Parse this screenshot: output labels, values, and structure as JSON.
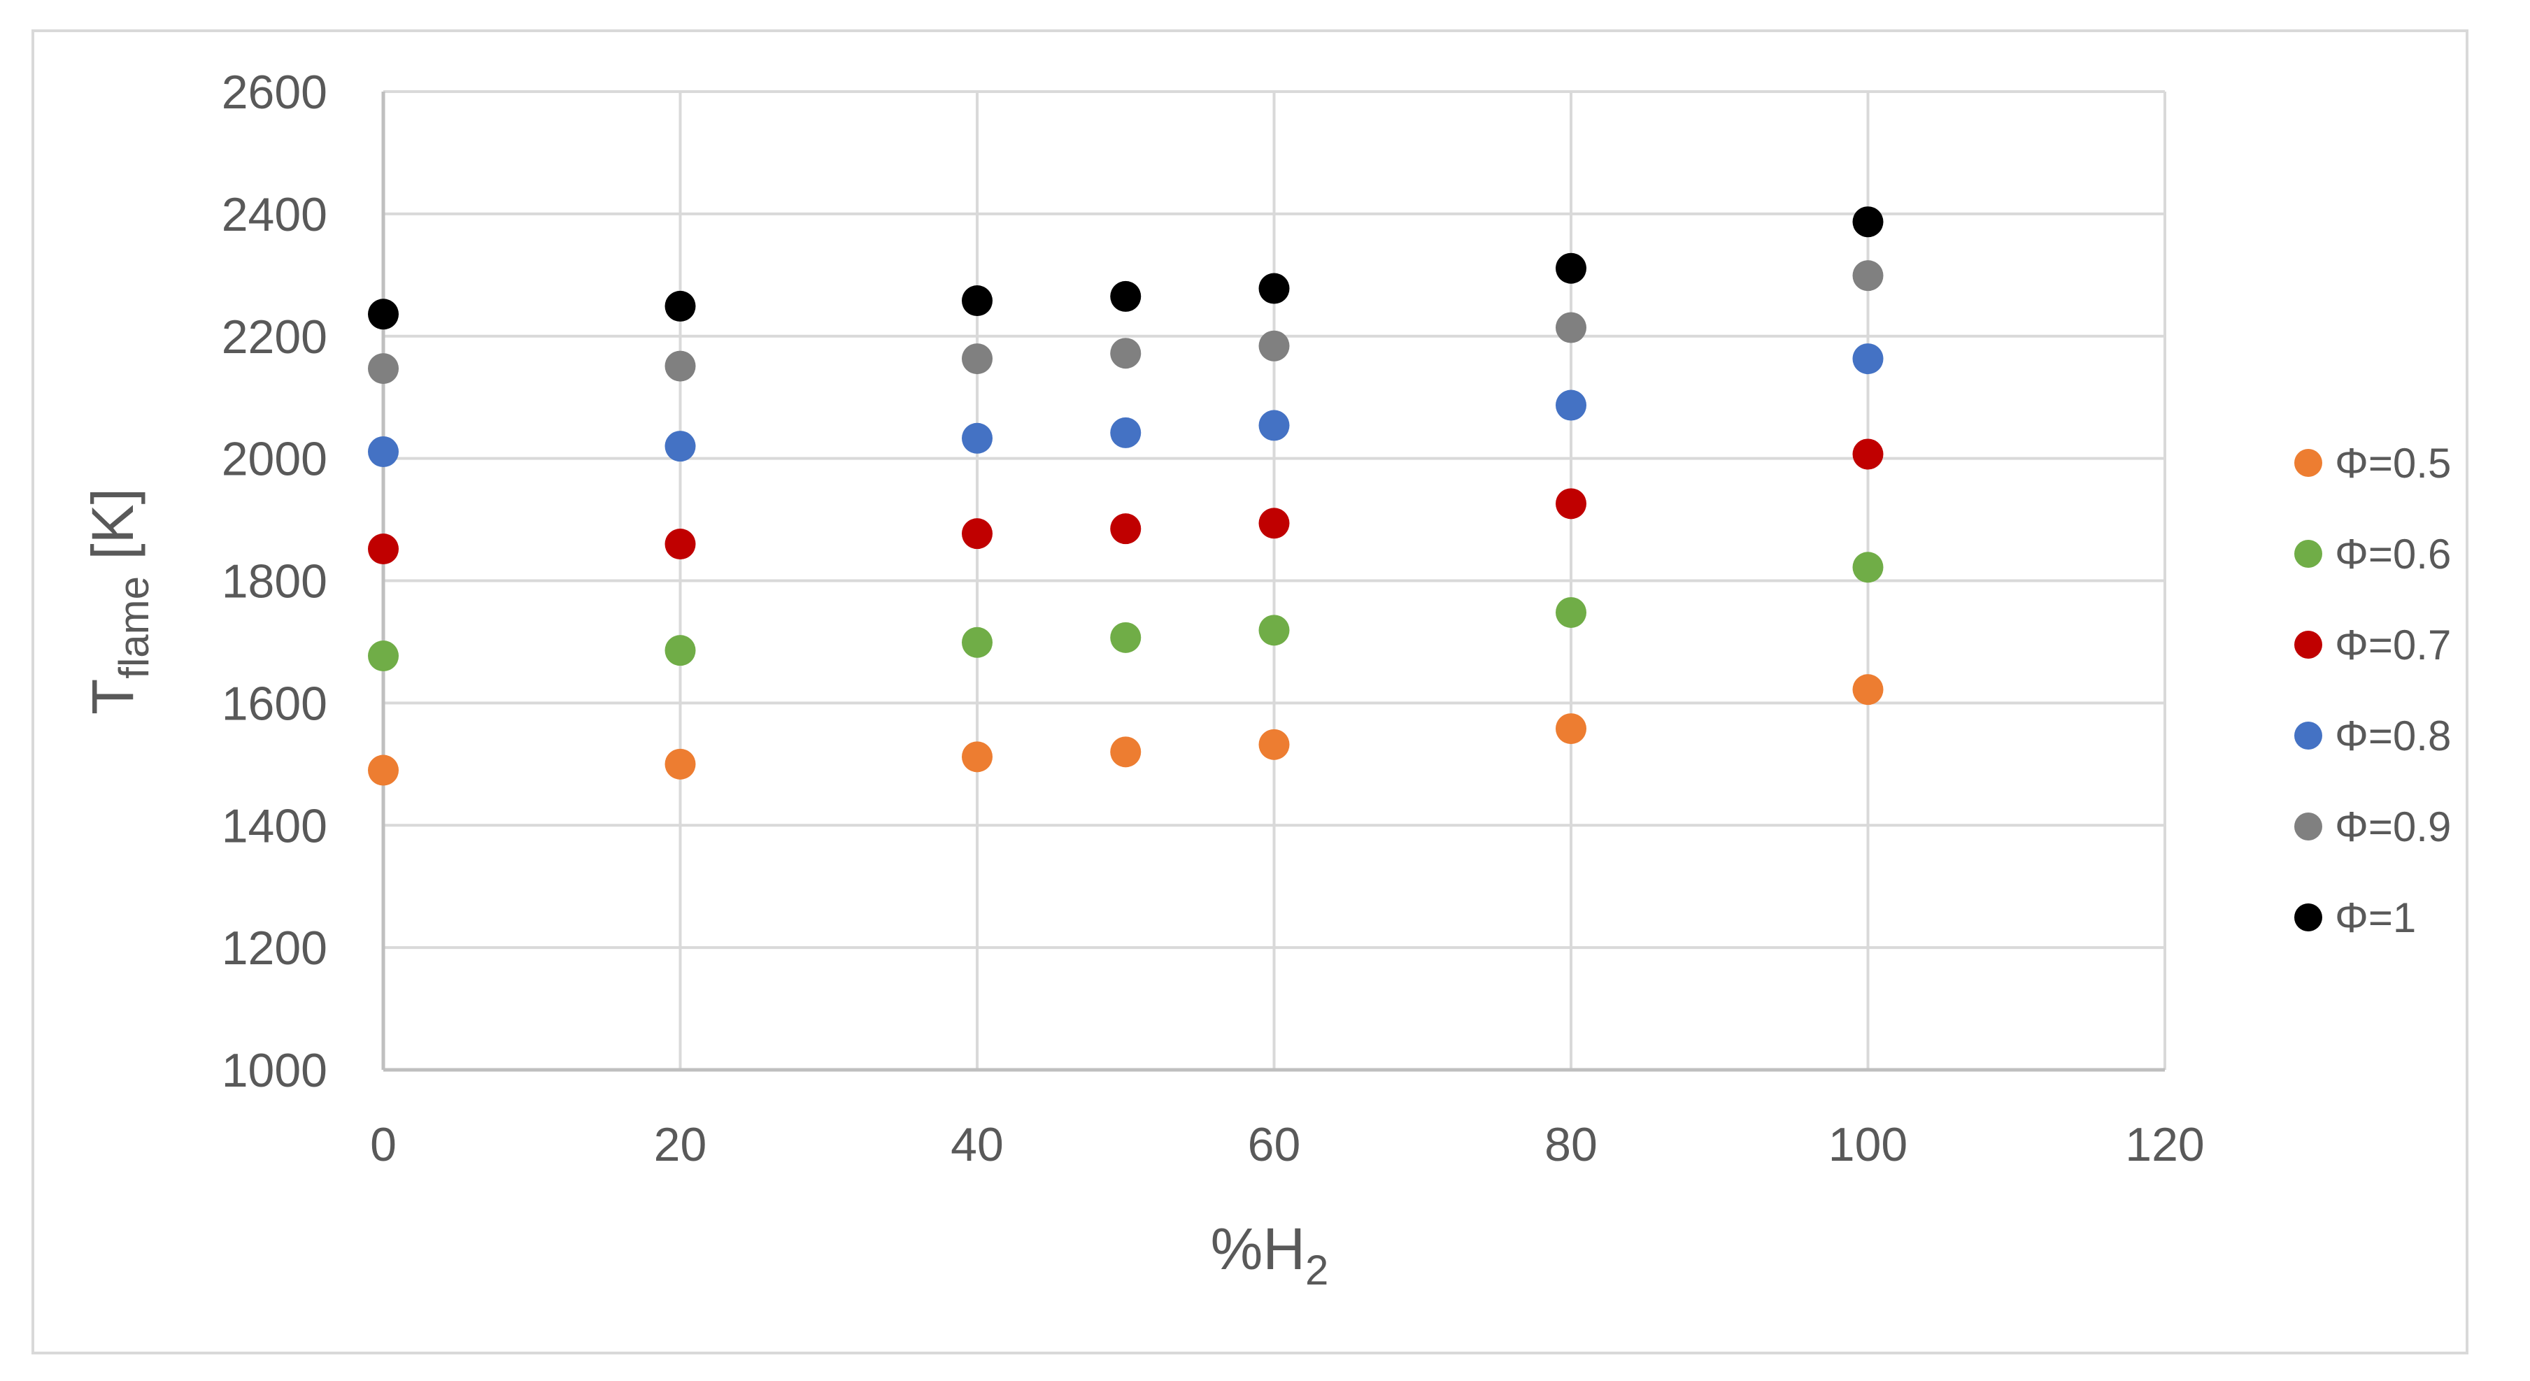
{
  "chart_data": {
    "type": "scatter",
    "title": "",
    "xlabel": {
      "main": "%H",
      "sub": "2"
    },
    "ylabel": {
      "main": "T",
      "sub": "flame",
      "unit": " [K]"
    },
    "xlim": [
      0,
      120
    ],
    "ylim": [
      1000,
      2600
    ],
    "x_ticks": [
      0,
      20,
      40,
      60,
      80,
      100,
      120
    ],
    "y_ticks": [
      1000,
      1200,
      1400,
      1600,
      1800,
      2000,
      2200,
      2400,
      2600
    ],
    "grid": true,
    "legend_position": "right",
    "x": [
      0,
      20,
      40,
      50,
      60,
      80,
      100
    ],
    "series": [
      {
        "name": "Φ=0.5",
        "color": "#ED7D31",
        "values": [
          1490,
          1500,
          1512,
          1520,
          1532,
          1558,
          1622
        ]
      },
      {
        "name": "Φ=0.6",
        "color": "#70AD47",
        "values": [
          1677,
          1686,
          1699,
          1707,
          1719,
          1748,
          1822
        ]
      },
      {
        "name": "Φ=0.7",
        "color": "#C00000",
        "values": [
          1852,
          1860,
          1877,
          1885,
          1894,
          1926,
          2007
        ]
      },
      {
        "name": "Φ=0.8",
        "color": "#4472C4",
        "values": [
          2011,
          2020,
          2033,
          2042,
          2054,
          2087,
          2163
        ]
      },
      {
        "name": "Φ=0.9",
        "color": "#808080",
        "values": [
          2147,
          2151,
          2163,
          2172,
          2184,
          2214,
          2299
        ]
      },
      {
        "name": "Φ=1",
        "color": "#000000",
        "values": [
          2236,
          2249,
          2258,
          2265,
          2278,
          2311,
          2387
        ]
      }
    ]
  }
}
